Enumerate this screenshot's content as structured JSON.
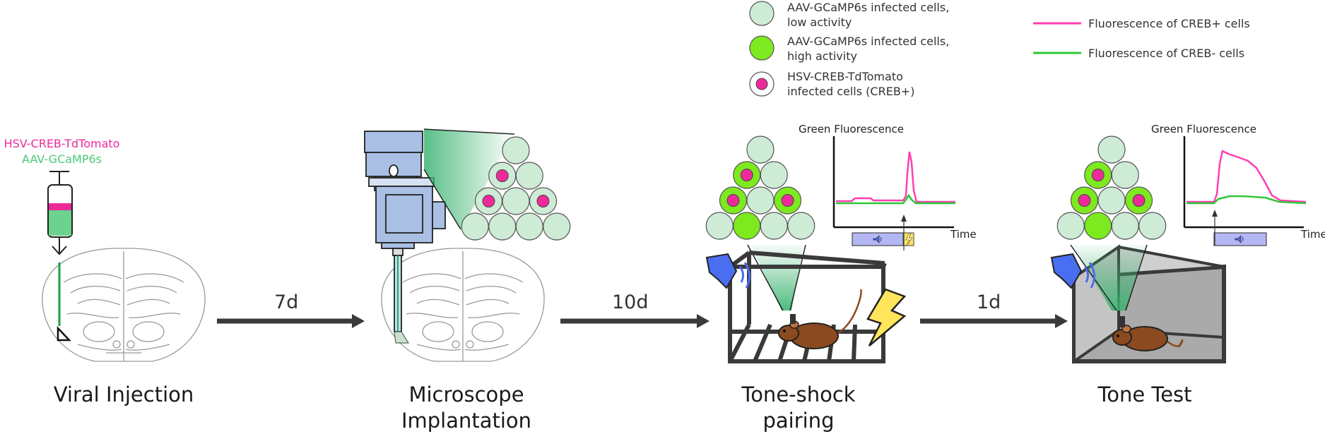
{
  "legend": {
    "items": [
      {
        "label_line1": "AAV-GCaMP6s infected cells,",
        "label_line2": "low activity",
        "color": "#cdebd5"
      },
      {
        "label_line1": "AAV-GCaMP6s infected cells,",
        "label_line2": "high activity",
        "color": "#7dea1f"
      },
      {
        "label_line1": "HSV-CREB-TdTomato",
        "label_line2": "infected cells (CREB+)",
        "color": "#ee2a9b"
      }
    ],
    "lines": [
      {
        "label": "Fluorescence of CREB+ cells",
        "color": "#ff3fb2"
      },
      {
        "label": "Fluorescence of CREB- cells",
        "color": "#2ec83a"
      }
    ]
  },
  "injection": {
    "label1": "HSV-CREB-TdTomato",
    "label2": "AAV-GCaMP6s",
    "color1": "#ee2a9b",
    "color2": "#4cc978"
  },
  "arrows": {
    "a1": "7d",
    "a2": "10d",
    "a3": "1d"
  },
  "stages": {
    "s1": "Viral Injection",
    "s2_line1": "Microscope",
    "s2_line2": "Implantation",
    "s3_line1": "Tone-shock",
    "s3_line2": "pairing",
    "s4": "Tone Test"
  },
  "plots": {
    "title": "Green Fluorescence",
    "xlabel": "Time"
  }
}
